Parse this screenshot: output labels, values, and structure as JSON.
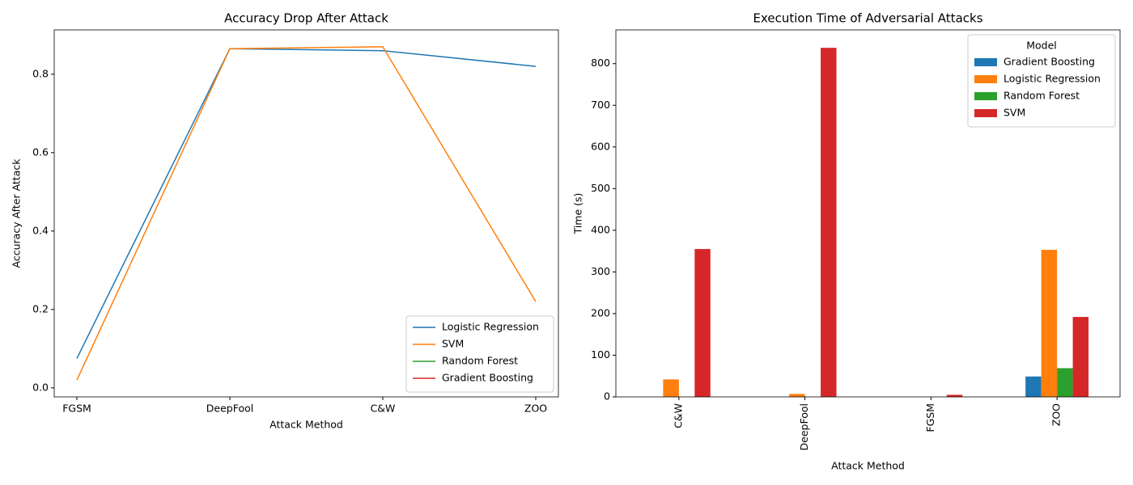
{
  "chart_data": [
    {
      "type": "line",
      "title": "Accuracy Drop After Attack",
      "x_label": "Attack Method",
      "y_label": "Accuracy After Attack",
      "categories": [
        "FGSM",
        "DeepFool",
        "C&W",
        "ZOO"
      ],
      "series": [
        {
          "name": "Logistic Regression",
          "color": "#1f77b4",
          "values": [
            0.075,
            0.865,
            0.86,
            0.82
          ]
        },
        {
          "name": "SVM",
          "color": "#ff7f0e",
          "values": [
            0.02,
            0.865,
            0.87,
            0.22
          ]
        },
        {
          "name": "Random Forest",
          "color": "#2ca02c",
          "values": [
            null,
            null,
            null,
            null
          ]
        },
        {
          "name": "Gradient Boosting",
          "color": "#d62728",
          "values": [
            null,
            null,
            null,
            null
          ]
        }
      ],
      "ylim": [
        -0.023,
        0.913
      ],
      "yticks": [
        {
          "value": 0,
          "label": "0.0"
        },
        0.2,
        0.4,
        0.6,
        0.8
      ],
      "legend": "lower right"
    },
    {
      "type": "bar",
      "title": "Execution Time of Adversarial Attacks",
      "x_label": "Attack Method",
      "y_label": "Time (s)",
      "legend_title": "Model",
      "categories": [
        "C&W",
        "DeepFool",
        "FGSM",
        "ZOO"
      ],
      "series": [
        {
          "name": "Gradient Boosting",
          "color": "#1f77b4",
          "values": [
            null,
            null,
            null,
            49
          ]
        },
        {
          "name": "Logistic Regression",
          "color": "#ff7f0e",
          "values": [
            42,
            7,
            null,
            353
          ]
        },
        {
          "name": "Random Forest",
          "color": "#2ca02c",
          "values": [
            null,
            null,
            null,
            69
          ]
        },
        {
          "name": "SVM",
          "color": "#d62728",
          "values": [
            355,
            838,
            5,
            192
          ]
        }
      ],
      "ylim": [
        0,
        881
      ],
      "yticks": [
        0,
        100,
        200,
        300,
        400,
        500,
        600,
        700,
        800
      ],
      "legend": "upper right"
    }
  ]
}
